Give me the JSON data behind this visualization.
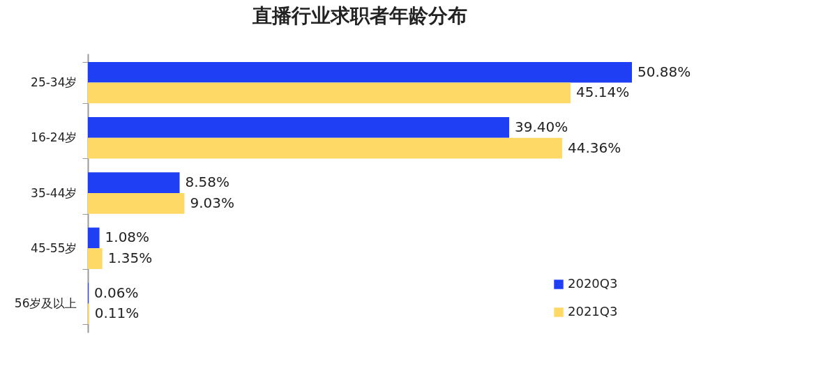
{
  "chart_data": {
    "type": "bar",
    "orientation": "horizontal",
    "title": "直播行业求职者年龄分布",
    "categories": [
      "25-34岁",
      "16-24岁",
      "35-44岁",
      "45-55岁",
      "56岁及以上"
    ],
    "series": [
      {
        "name": "2020Q3",
        "color": "#1f3ff5",
        "values": [
          50.88,
          39.4,
          8.58,
          1.08,
          0.06
        ],
        "value_labels": [
          "50.88%",
          "39.40%",
          "8.58%",
          "1.08%",
          "0.06%"
        ]
      },
      {
        "name": "2021Q3",
        "color": "#ffd966",
        "values": [
          45.14,
          44.36,
          9.03,
          1.35,
          0.11
        ],
        "value_labels": [
          "45.14%",
          "44.36%",
          "9.03%",
          "1.35%",
          "0.11%"
        ]
      }
    ],
    "tick_labels": "y",
    "legend": "bottom right"
  }
}
